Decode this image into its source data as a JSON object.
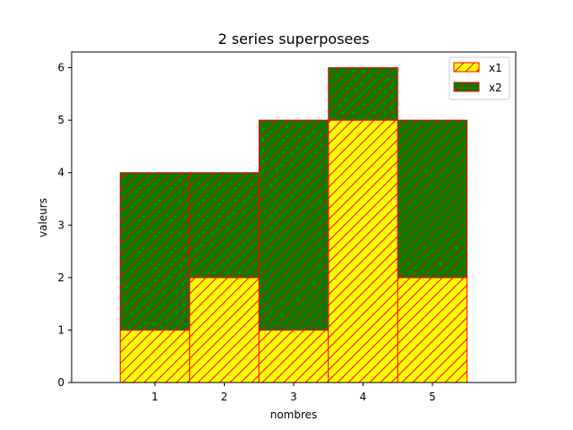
{
  "chart_data": {
    "type": "bar",
    "stacked": true,
    "title": "2 series superposees",
    "xlabel": "nombres",
    "ylabel": "valeurs",
    "categories": [
      "1",
      "2",
      "3",
      "4",
      "5"
    ],
    "series": [
      {
        "name": "x1",
        "values": [
          1,
          2,
          1,
          5,
          2
        ],
        "color": "#ffff00",
        "edgecolor": "#ff0000",
        "hatch": "/"
      },
      {
        "name": "x2",
        "values": [
          3,
          2,
          4,
          1,
          3
        ],
        "color": "#008000",
        "edgecolor": "#ff0000",
        "hatch": "/"
      }
    ],
    "ylim": [
      0,
      6.3
    ],
    "yticks": [
      "0",
      "1",
      "2",
      "3",
      "4",
      "5",
      "6"
    ],
    "grid": false,
    "legend_position": "top-right"
  }
}
